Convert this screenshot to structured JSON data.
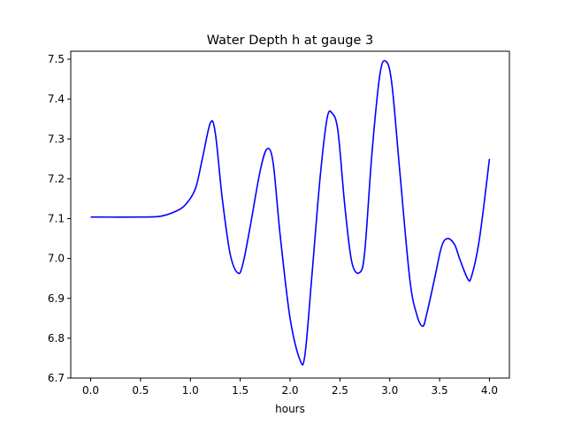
{
  "chart_data": {
    "type": "line",
    "title": "Water Depth h at gauge 3",
    "xlabel": "hours",
    "ylabel": "",
    "xlim": [
      -0.2,
      4.2
    ],
    "ylim": [
      6.7,
      7.52
    ],
    "xticks": [
      0.0,
      0.5,
      1.0,
      1.5,
      2.0,
      2.5,
      3.0,
      3.5,
      4.0
    ],
    "xtick_labels": [
      "0.0",
      "0.5",
      "1.0",
      "1.5",
      "2.0",
      "2.5",
      "3.0",
      "3.5",
      "4.0"
    ],
    "yticks": [
      6.7,
      6.8,
      6.9,
      7.0,
      7.1,
      7.2,
      7.3,
      7.4,
      7.5
    ],
    "ytick_labels": [
      "6.7",
      "6.8",
      "6.9",
      "7.0",
      "7.1",
      "7.2",
      "7.3",
      "7.4",
      "7.5"
    ],
    "grid": false,
    "series": [
      {
        "color": "#0000ff",
        "x": [
          0.0,
          0.5,
          0.7,
          0.85,
          0.95,
          1.05,
          1.12,
          1.2,
          1.25,
          1.32,
          1.4,
          1.48,
          1.53,
          1.6,
          1.7,
          1.77,
          1.83,
          1.9,
          2.0,
          2.1,
          2.15,
          2.22,
          2.3,
          2.37,
          2.42,
          2.48,
          2.55,
          2.62,
          2.7,
          2.75,
          2.82,
          2.9,
          2.96,
          3.02,
          3.1,
          3.2,
          3.27,
          3.33,
          3.37,
          3.45,
          3.52,
          3.58,
          3.65,
          3.7,
          3.78,
          3.82,
          3.9,
          4.0
        ],
        "y": [
          7.104,
          7.104,
          7.106,
          7.118,
          7.135,
          7.175,
          7.25,
          7.34,
          7.315,
          7.15,
          7.01,
          6.963,
          6.99,
          7.08,
          7.22,
          7.275,
          7.24,
          7.06,
          6.85,
          6.745,
          6.76,
          6.96,
          7.2,
          7.35,
          7.365,
          7.32,
          7.13,
          6.99,
          6.965,
          7.02,
          7.26,
          7.46,
          7.495,
          7.44,
          7.22,
          6.95,
          6.86,
          6.83,
          6.86,
          6.95,
          7.03,
          7.05,
          7.035,
          7.0,
          6.95,
          6.955,
          7.05,
          7.25
        ]
      }
    ]
  }
}
